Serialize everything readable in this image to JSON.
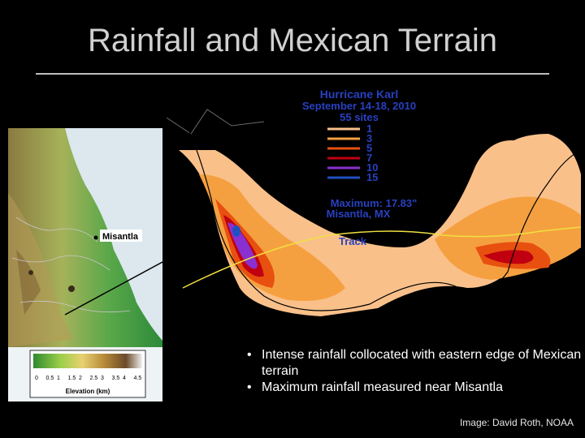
{
  "slide": {
    "title": "Rainfall and Mexican Terrain",
    "credit": "Image: David Roth, NOAA",
    "bullets": [
      "Intense rainfall collocated with eastern edge of Mexican terrain",
      "Maximum rainfall measured near Misantla"
    ]
  },
  "terrain_map": {
    "town_label": "Misantla",
    "legend_ticks": [
      "0",
      "0.5",
      "1",
      "1.5",
      "2",
      "2.5",
      "3",
      "3.5",
      "4",
      "4.5"
    ],
    "legend_title": "Elevation (km)"
  },
  "rainfall_map": {
    "storm_name": "Hurricane Karl",
    "dates": "September 14-18, 2010",
    "sites": "55 sites",
    "legend": [
      {
        "label": "1",
        "color": "#f9c08a"
      },
      {
        "label": "3",
        "color": "#f5a040"
      },
      {
        "label": "5",
        "color": "#e85010"
      },
      {
        "label": "7",
        "color": "#c00010"
      },
      {
        "label": "10",
        "color": "#8a30d0"
      },
      {
        "label": "15",
        "color": "#2050c0"
      }
    ],
    "maximum_line1": "Maximum:  17.83\"",
    "maximum_line2": "Misantla, MX",
    "track_label": "Track"
  }
}
